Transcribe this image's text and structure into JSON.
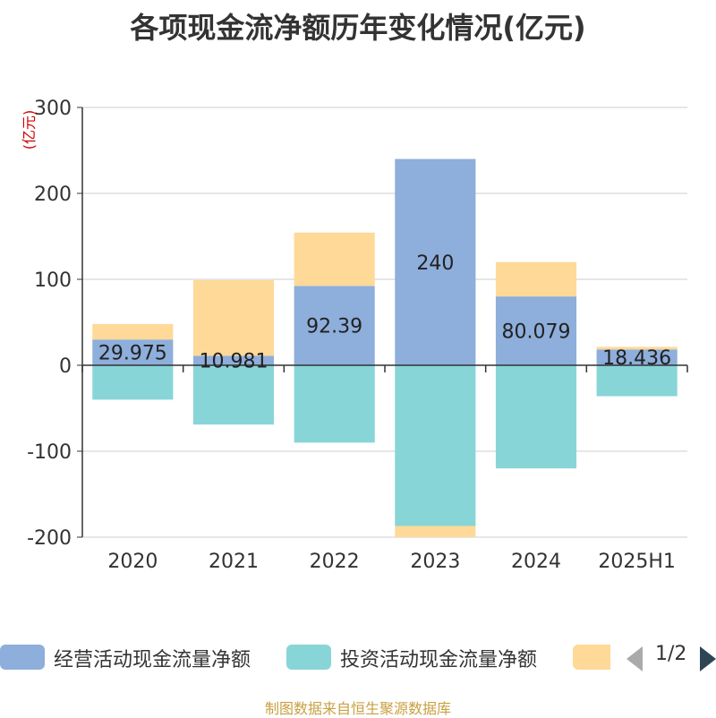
{
  "title": "各项现金流净额历年变化情况(亿元)",
  "source": "制图数据来自恒生聚源数据库",
  "legend_pager": "1/2",
  "chart_data": {
    "type": "bar",
    "stacked": true,
    "categories": [
      "2020",
      "2021",
      "2022",
      "2023",
      "2024",
      "2025H1"
    ],
    "ylabel": "(亿元)",
    "ylim": [
      -200,
      300
    ],
    "yticks": [
      "300",
      "200",
      "100",
      "0",
      "-100",
      "-200"
    ],
    "grid": true,
    "legend_position": "bottom",
    "series": [
      {
        "name": "经营活动现金流量净额",
        "color": "#8eaedb",
        "values": [
          29.975,
          10.981,
          92.39,
          240,
          80.079,
          18.436
        ],
        "labels": [
          "29.975",
          "10.981",
          "92.39",
          "240",
          "80.079",
          "18.436"
        ]
      },
      {
        "name": "投资活动现金流量净额",
        "color": "#88d5d8",
        "values": [
          -40,
          -69,
          -90,
          -187,
          -120,
          -36
        ]
      },
      {
        "name": "",
        "color": "#ffd998",
        "values": [
          18,
          88,
          62,
          -13,
          40,
          3
        ]
      }
    ]
  }
}
